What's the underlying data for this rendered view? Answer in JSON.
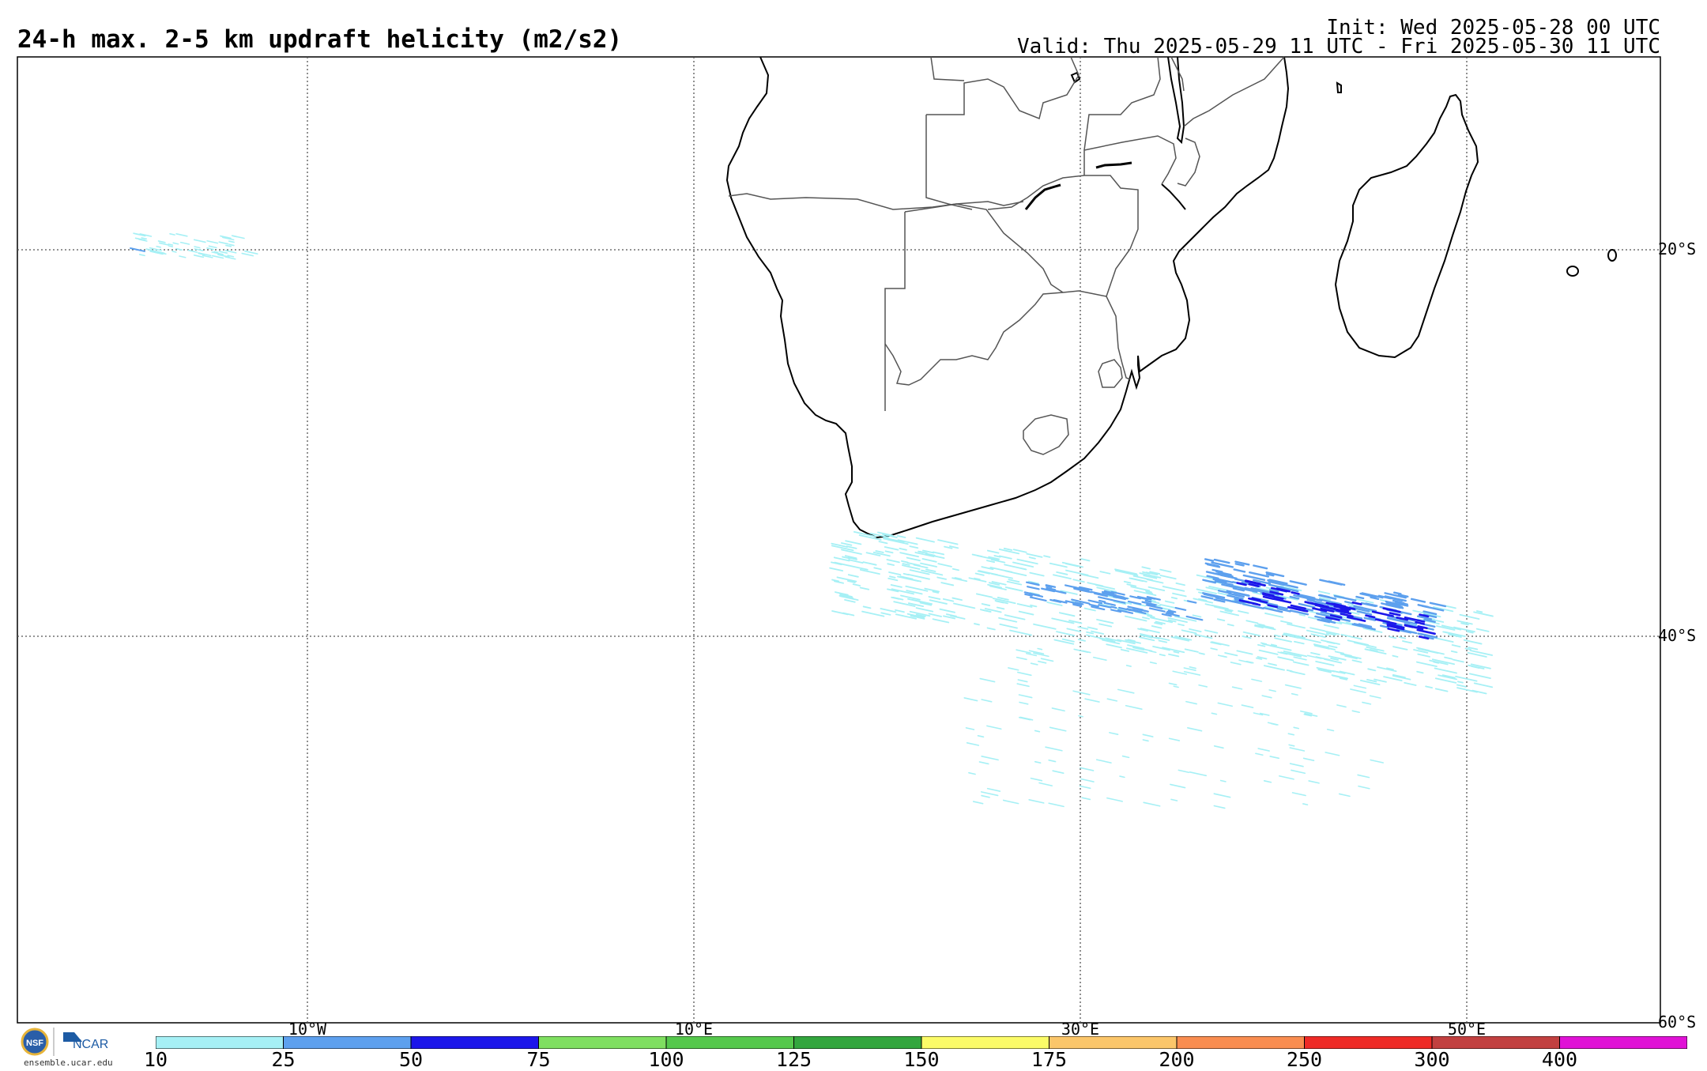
{
  "header": {
    "title": "24-h max. 2-5 km updraft helicity (m2/s2)",
    "init": "Init: Wed 2025-05-28 00 UTC",
    "valid": "Valid: Thu 2025-05-29 11 UTC - Fri 2025-05-30 11 UTC"
  },
  "map": {
    "longitude_labels": [
      "10°W",
      "10°E",
      "30°E",
      "50°E"
    ],
    "latitude_labels": [
      "20°S",
      "40°S",
      "60°S"
    ],
    "grid": "dotted"
  },
  "colorbar": {
    "ticks": [
      "10",
      "25",
      "50",
      "75",
      "100",
      "125",
      "150",
      "175",
      "200",
      "250",
      "300",
      "400"
    ],
    "colors": [
      "#a6f0f5",
      "#5da0ee",
      "#1c17ea",
      "#7fdf60",
      "#55c84c",
      "#33a63e",
      "#fbfb68",
      "#fbc66a",
      "#f98d50",
      "#ee2a26",
      "#c24040",
      "#e012d6"
    ]
  },
  "footer": {
    "logo_text": "NCAR",
    "logo_seal": "NSF",
    "url": "ensemble.ucar.edu"
  }
}
